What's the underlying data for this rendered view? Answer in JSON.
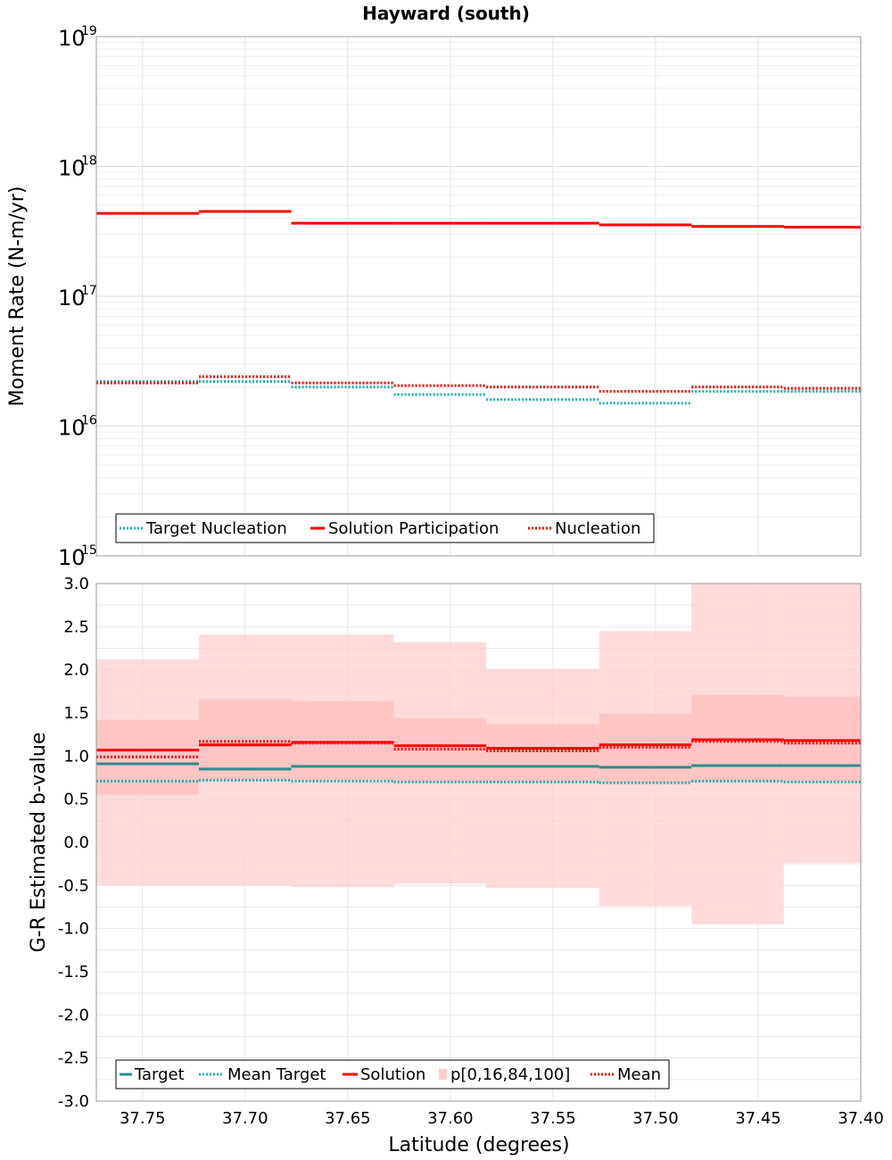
{
  "title": "Hayward (south)",
  "x_axis": {
    "label": "Latitude (degrees)",
    "ticks": [
      "37.75",
      "37.70",
      "37.65",
      "37.60",
      "37.55",
      "37.50",
      "37.45",
      "37.40"
    ],
    "range": [
      37.7725,
      37.4
    ]
  },
  "chart_data": [
    {
      "type": "line",
      "name": "moment-rate",
      "ylabel": "Moment Rate (N-m/yr)",
      "yscale": "log",
      "ylim": [
        1000000000000000.0,
        1e+19
      ],
      "ytick_bases": [
        "10",
        "10",
        "10",
        "10",
        "10"
      ],
      "ytick_exps": [
        "15",
        "16",
        "17",
        "18",
        "19"
      ],
      "grid": true,
      "legend_position": "bottom-left",
      "bin_edges": [
        37.7725,
        37.7225,
        37.6775,
        37.6275,
        37.5825,
        37.5275,
        37.4825,
        37.4375,
        37.4
      ],
      "series": [
        {
          "name": "Target Nucleation",
          "style": "dotted",
          "color": "#1ab0b0",
          "values": [
            2.2e+16,
            2.2e+16,
            2e+16,
            1.75e+16,
            1.6e+16,
            1.5e+16,
            1.85e+16,
            1.85e+16
          ]
        },
        {
          "name": "Solution Participation",
          "style": "solid",
          "color": "#ff0000",
          "values": [
            4.35e+17,
            4.5e+17,
            3.65e+17,
            3.65e+17,
            3.65e+17,
            3.55e+17,
            3.45e+17,
            3.4e+17
          ]
        },
        {
          "name": "Nucleation",
          "style": "dotted",
          "color": "#ff0000",
          "values": [
            2.15e+16,
            2.4e+16,
            2.15e+16,
            2.05e+16,
            2e+16,
            1.85e+16,
            2e+16,
            1.95e+16
          ]
        }
      ]
    },
    {
      "type": "line",
      "name": "b-value",
      "ylabel": "G-R Estimated b-value",
      "ylim": [
        -3.0,
        3.0
      ],
      "yticks": [
        "3.0",
        "2.5",
        "2.0",
        "1.5",
        "1.0",
        "0.5",
        "0.0",
        "-0.5",
        "-1.0",
        "-1.5",
        "-2.0",
        "-2.5",
        "-3.0"
      ],
      "grid": true,
      "legend_position": "bottom-left",
      "bin_edges": [
        37.7725,
        37.7225,
        37.6775,
        37.6275,
        37.5825,
        37.5275,
        37.4825,
        37.4375,
        37.4
      ],
      "band_label": "p[0,16,84,100]",
      "band_color": "#ffcccc",
      "outer_band": {
        "low": [
          -0.5,
          -0.5,
          -0.52,
          -0.48,
          -0.53,
          -0.74,
          -0.95,
          -0.24
        ],
        "high": [
          2.12,
          2.41,
          2.41,
          2.32,
          2.01,
          2.45,
          3.0,
          3.0
        ]
      },
      "inner_band": {
        "low": [
          0.55,
          0.72,
          0.72,
          0.7,
          0.7,
          0.69,
          0.7,
          0.7
        ],
        "high": [
          1.42,
          1.66,
          1.64,
          1.44,
          1.37,
          1.49,
          1.71,
          1.69
        ]
      },
      "series": [
        {
          "name": "Target",
          "style": "solid",
          "color": "#2e8b8b",
          "values": [
            0.91,
            0.85,
            0.88,
            0.88,
            0.88,
            0.87,
            0.89,
            0.89
          ]
        },
        {
          "name": "Mean Target",
          "style": "dotted",
          "color": "#1ab0b0",
          "values": [
            0.71,
            0.72,
            0.71,
            0.7,
            0.7,
            0.69,
            0.71,
            0.7
          ]
        },
        {
          "name": "Solution",
          "style": "solid",
          "color": "#ff0000",
          "values": [
            1.07,
            1.13,
            1.16,
            1.12,
            1.09,
            1.13,
            1.19,
            1.18
          ]
        },
        {
          "name": "Mean",
          "style": "dotted",
          "color": "#ff0000",
          "values": [
            0.99,
            1.17,
            1.15,
            1.08,
            1.06,
            1.1,
            1.17,
            1.15
          ]
        }
      ]
    }
  ]
}
